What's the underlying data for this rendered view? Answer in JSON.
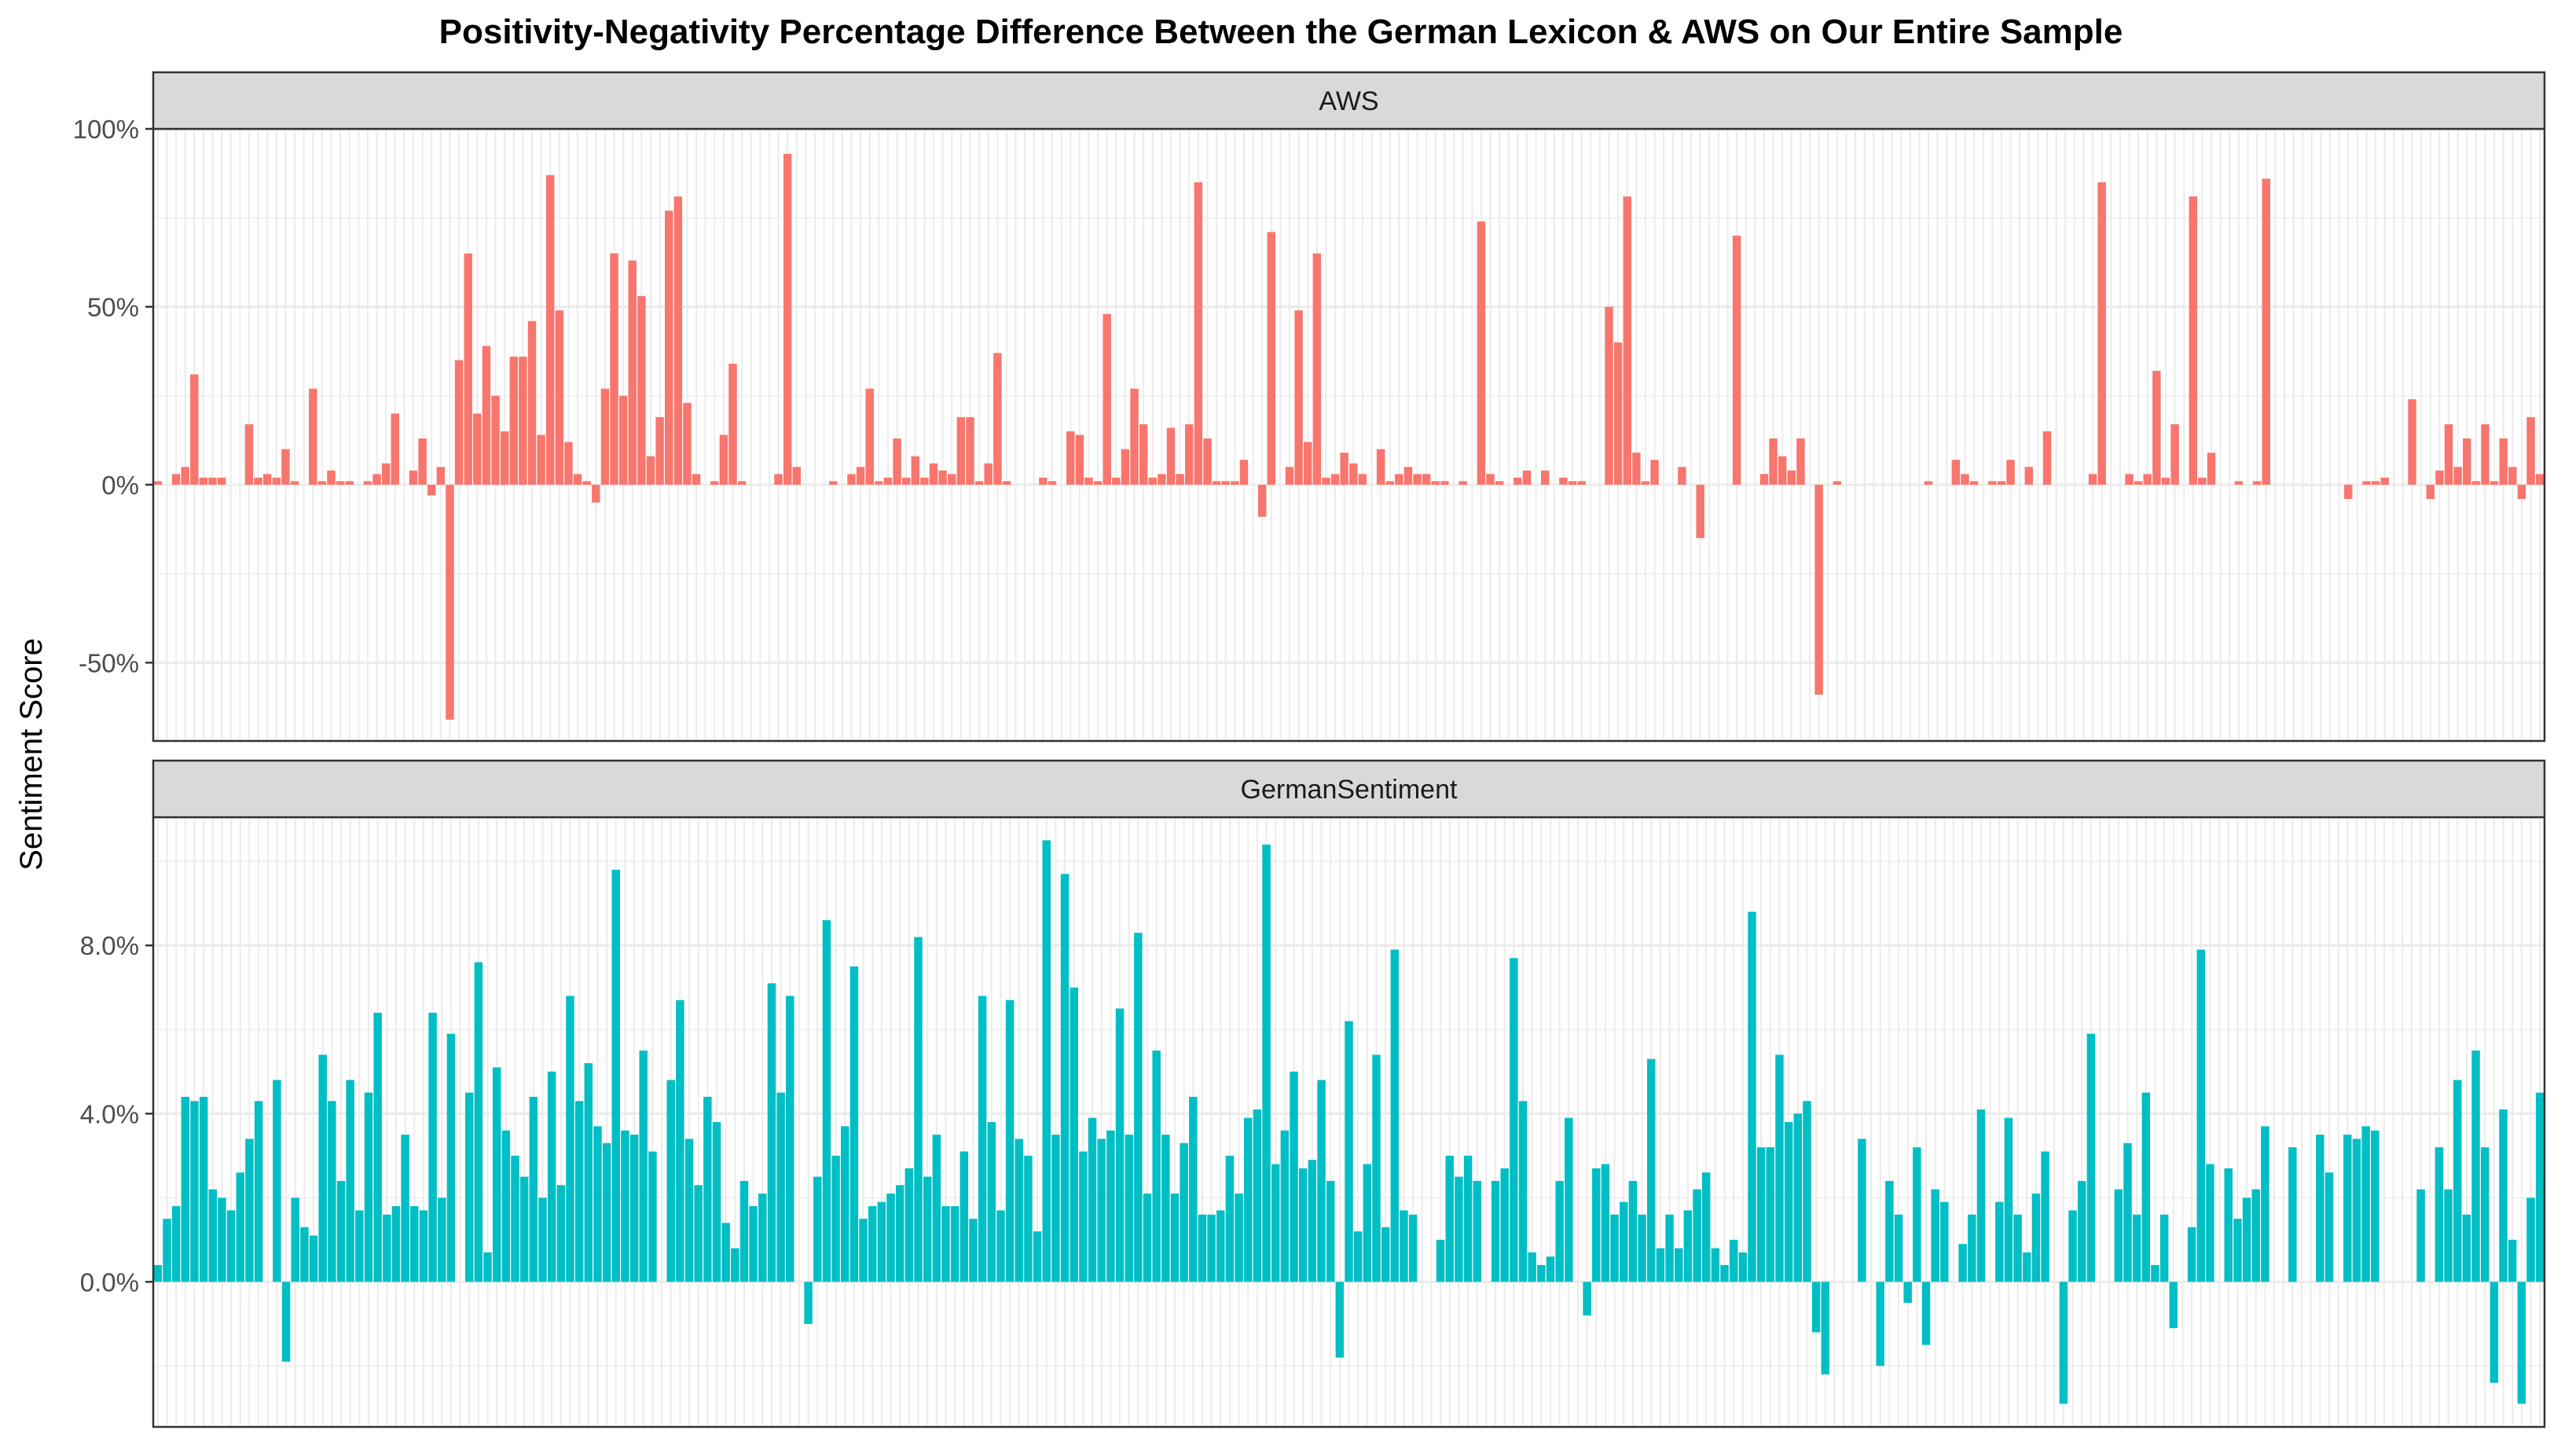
{
  "chart_data": {
    "type": "bar",
    "title": "Positivity-Negativity Percentage Difference Between the German Lexicon & AWS on Our Entire Sample",
    "ylabel": "Sentiment Score",
    "xlabel": "",
    "legend": "none",
    "grid": true,
    "panels": [
      {
        "name": "AWS",
        "color": "#F8766D",
        "ylim": [
          -0.72,
          1.0
        ],
        "ticks": [
          {
            "value": 1.0,
            "label": "100%"
          },
          {
            "value": 0.5,
            "label": "50%"
          },
          {
            "value": 0.0,
            "label": "0%"
          },
          {
            "value": -0.5,
            "label": "-50%"
          }
        ],
        "values": [
          0.01,
          0,
          0.03,
          0.05,
          0.31,
          0.02,
          0.02,
          0.02,
          0,
          0,
          0.17,
          0.02,
          0.03,
          0.02,
          0.1,
          0.01,
          0,
          0.27,
          0.01,
          0.04,
          0.01,
          0.01,
          0,
          0.01,
          0.03,
          0.06,
          0.2,
          0,
          0.04,
          0.13,
          -0.03,
          0.05,
          -0.66,
          0.35,
          0.65,
          0.2,
          0.39,
          0.25,
          0.15,
          0.36,
          0.36,
          0.46,
          0.14,
          0.87,
          0.49,
          0.12,
          0.03,
          0.01,
          -0.05,
          0.27,
          0.65,
          0.25,
          0.63,
          0.53,
          0.08,
          0.19,
          0.77,
          0.81,
          0.23,
          0.03,
          0,
          0.01,
          0.14,
          0.34,
          0.01,
          0,
          0,
          0,
          0.03,
          0.93,
          0.05,
          0,
          0,
          0,
          0.01,
          0,
          0.03,
          0.05,
          0.27,
          0.01,
          0.02,
          0.13,
          0.02,
          0.08,
          0.02,
          0.06,
          0.04,
          0.03,
          0.19,
          0.19,
          0.01,
          0.06,
          0.37,
          0.01,
          0,
          0,
          0,
          0.02,
          0.01,
          0,
          0.15,
          0.14,
          0.02,
          0.01,
          0.48,
          0.02,
          0.1,
          0.27,
          0.17,
          0.02,
          0.03,
          0.16,
          0.03,
          0.17,
          0.85,
          0.13,
          0.01,
          0.01,
          0.01,
          0.07,
          0,
          -0.09,
          0.71,
          0,
          0.05,
          0.49,
          0.12,
          0.65,
          0.02,
          0.03,
          0.09,
          0.06,
          0.03,
          0,
          0.1,
          0.01,
          0.03,
          0.05,
          0.03,
          0.03,
          0.01,
          0.01,
          0,
          0.01,
          0,
          0.74,
          0.03,
          0.01,
          0,
          0.02,
          0.04,
          0,
          0.04,
          0,
          0.02,
          0.01,
          0.01,
          0,
          0,
          0.5,
          0.4,
          0.81,
          0.09,
          0.01,
          0.07,
          0,
          0,
          0.05,
          0,
          -0.15,
          0,
          0,
          0,
          0.7,
          0,
          0,
          0.03,
          0.13,
          0.08,
          0.04,
          0.13,
          0,
          -0.59,
          0,
          0.01,
          0,
          0,
          0,
          0,
          0,
          0,
          0,
          0,
          0,
          0.01,
          0,
          0,
          0.07,
          0.03,
          0.01,
          0,
          0.01,
          0.01,
          0.07,
          0,
          0.05,
          0,
          0.15,
          0,
          0,
          0,
          0,
          0.03,
          0.85,
          0,
          0,
          0.03,
          0.01,
          0.03,
          0.32,
          0.02,
          0.17,
          0,
          0.81,
          0.02,
          0.09,
          0,
          0,
          0.01,
          0,
          0.01,
          0.86,
          0,
          0,
          0,
          0,
          0,
          0,
          0,
          0,
          -0.04,
          0,
          0.01,
          0.01,
          0.02,
          0,
          0,
          0.24,
          0,
          -0.04,
          0.04,
          0.17,
          0.05,
          0.13,
          0.01,
          0.17,
          0.01,
          0.13,
          0.05,
          -0.04,
          0.19,
          0.03
        ]
      },
      {
        "name": "GermanSentiment",
        "color": "#00BFC4",
        "ylim": [
          -0.0345,
          0.1105
        ],
        "ticks": [
          {
            "value": 0.08,
            "label": "8.0%"
          },
          {
            "value": 0.04,
            "label": "4.0%"
          },
          {
            "value": 0.0,
            "label": "0.0%"
          }
        ],
        "values": [
          0.004,
          0.015,
          0.018,
          0.044,
          0.043,
          0.044,
          0.022,
          0.02,
          0.017,
          0.026,
          0.034,
          0.043,
          0,
          0.048,
          -0.019,
          0.02,
          0.013,
          0.011,
          0.054,
          0.043,
          0.024,
          0.048,
          0.017,
          0.045,
          0.064,
          0.016,
          0.018,
          0.035,
          0.018,
          0.017,
          0.064,
          0.02,
          0.059,
          0,
          0.045,
          0.076,
          0.007,
          0.051,
          0.036,
          0.03,
          0.025,
          0.044,
          0.02,
          0.05,
          0.023,
          0.068,
          0.043,
          0.052,
          0.037,
          0.033,
          0.098,
          0.036,
          0.035,
          0.055,
          0.031,
          0,
          0.048,
          0.067,
          0.034,
          0.023,
          0.044,
          0.038,
          0.014,
          0.008,
          0.024,
          0.018,
          0.021,
          0.071,
          0.045,
          0.068,
          0,
          -0.01,
          0.025,
          0.086,
          0.03,
          0.037,
          0.075,
          0.015,
          0.018,
          0.019,
          0.021,
          0.023,
          0.027,
          0.082,
          0.025,
          0.035,
          0.018,
          0.018,
          0.031,
          0.015,
          0.068,
          0.038,
          0.017,
          0.067,
          0.034,
          0.03,
          0.012,
          0.105,
          0.035,
          0.097,
          0.07,
          0.031,
          0.039,
          0.034,
          0.036,
          0.065,
          0.035,
          0.083,
          0.021,
          0.055,
          0.035,
          0.021,
          0.033,
          0.044,
          0.016,
          0.016,
          0.017,
          0.03,
          0.021,
          0.039,
          0.041,
          0.104,
          0.028,
          0.036,
          0.05,
          0.027,
          0.029,
          0.048,
          0.024,
          -0.018,
          0.062,
          0.012,
          0.028,
          0.054,
          0.013,
          0.079,
          0.017,
          0.016,
          0,
          0,
          0.01,
          0.03,
          0.025,
          0.03,
          0.024,
          0,
          0.024,
          0.027,
          0.077,
          0.043,
          0.007,
          0.004,
          0.006,
          0.024,
          0.039,
          0,
          -0.008,
          0.027,
          0.028,
          0.016,
          0.019,
          0.024,
          0.016,
          0.053,
          0.008,
          0.016,
          0.008,
          0.017,
          0.022,
          0.026,
          0.008,
          0.004,
          0.01,
          0.007,
          0.088,
          0.032,
          0.032,
          0.054,
          0.038,
          0.04,
          0.043,
          -0.012,
          -0.022,
          0,
          0,
          0,
          0.034,
          0,
          -0.02,
          0.024,
          0.016,
          -0.005,
          0.032,
          -0.015,
          0.022,
          0.019,
          0,
          0.009,
          0.016,
          0.041,
          0,
          0.019,
          0.039,
          0.016,
          0.007,
          0.021,
          0.031,
          0,
          -0.029,
          0.017,
          0.024,
          0.059,
          0,
          0,
          0.022,
          0.033,
          0.016,
          0.045,
          0.004,
          0.016,
          -0.011,
          0,
          0.013,
          0.079,
          0.028,
          0,
          0.027,
          0.015,
          0.02,
          0.022,
          0.037,
          0,
          0,
          0.032,
          0,
          0,
          0.035,
          0.026,
          0,
          0.035,
          0.034,
          0.037,
          0.036,
          0,
          0,
          0,
          0,
          0.022,
          0,
          0.032,
          0.022,
          0.048,
          0.016,
          0.055,
          0.032,
          -0.024,
          0.041,
          0.01,
          -0.029,
          0.02,
          0.045
        ]
      }
    ]
  }
}
